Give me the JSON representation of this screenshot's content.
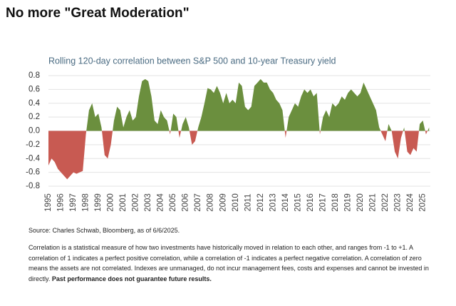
{
  "header": {
    "title": "No more \"Great Moderation\""
  },
  "chart_data": {
    "type": "area",
    "title": "Rolling 120-day correlation between S&P 500 and 10-year Treasury yield",
    "positive_color": "#6b8f3e",
    "negative_color": "#c85a52",
    "grid": true,
    "xlim": [
      1995,
      2025.6
    ],
    "xticks": [
      1995,
      1996,
      1997,
      1998,
      1999,
      2000,
      2001,
      2002,
      2003,
      2004,
      2005,
      2006,
      2007,
      2008,
      2009,
      2010,
      2011,
      2012,
      2013,
      2014,
      2015,
      2016,
      2017,
      2018,
      2019,
      2020,
      2021,
      2022,
      2023,
      2024,
      2025
    ],
    "ylim": [
      -0.8,
      0.8
    ],
    "yticks": [
      0.8,
      0.6,
      0.4,
      0.2,
      {
        "value": 0,
        "label": "0.0"
      },
      -0.2,
      -0.4,
      -0.6,
      -0.8
    ],
    "x": [
      1995,
      1995.25,
      1995.5,
      1995.75,
      1996,
      1996.25,
      1996.5,
      1996.75,
      1997,
      1997.25,
      1997.5,
      1997.75,
      1998,
      1998.25,
      1998.5,
      1998.75,
      1999,
      1999.25,
      1999.5,
      1999.75,
      2000,
      2000.25,
      2000.5,
      2000.75,
      2001,
      2001.25,
      2001.5,
      2001.75,
      2002,
      2002.25,
      2002.5,
      2002.75,
      2003,
      2003.25,
      2003.5,
      2003.75,
      2004,
      2004.25,
      2004.5,
      2004.75,
      2005,
      2005.25,
      2005.5,
      2005.75,
      2006,
      2006.25,
      2006.5,
      2006.75,
      2007,
      2007.25,
      2007.5,
      2007.75,
      2008,
      2008.25,
      2008.5,
      2008.75,
      2009,
      2009.25,
      2009.5,
      2009.75,
      2010,
      2010.25,
      2010.5,
      2010.75,
      2011,
      2011.25,
      2011.5,
      2011.75,
      2012,
      2012.25,
      2012.5,
      2012.75,
      2013,
      2013.25,
      2013.5,
      2013.75,
      2014,
      2014.25,
      2014.5,
      2014.75,
      2015,
      2015.25,
      2015.5,
      2015.75,
      2016,
      2016.25,
      2016.5,
      2016.75,
      2017,
      2017.25,
      2017.5,
      2017.75,
      2018,
      2018.25,
      2018.5,
      2018.75,
      2019,
      2019.25,
      2019.5,
      2019.75,
      2020,
      2020.25,
      2020.5,
      2020.75,
      2021,
      2021.25,
      2021.5,
      2021.75,
      2022,
      2022.25,
      2022.5,
      2022.75,
      2023,
      2023.25,
      2023.5,
      2023.75,
      2024,
      2024.25,
      2024.5,
      2024.75,
      2025,
      2025.25,
      2025.5
    ],
    "values": [
      -0.5,
      -0.4,
      -0.45,
      -0.55,
      -0.6,
      -0.65,
      -0.7,
      -0.65,
      -0.6,
      -0.62,
      -0.6,
      -0.58,
      -0.05,
      0.3,
      0.4,
      0.2,
      0.25,
      0.05,
      -0.35,
      -0.4,
      -0.2,
      0.15,
      0.35,
      0.3,
      0.05,
      0.2,
      0.3,
      0.15,
      0.2,
      0.5,
      0.72,
      0.75,
      0.72,
      0.5,
      0.15,
      0.1,
      0.3,
      0.2,
      0.15,
      -0.05,
      0.25,
      0.2,
      -0.1,
      0.1,
      0.2,
      0.05,
      -0.2,
      -0.15,
      0.05,
      0.2,
      0.4,
      0.62,
      0.6,
      0.55,
      0.65,
      0.55,
      0.4,
      0.55,
      0.4,
      0.45,
      0.4,
      0.7,
      0.65,
      0.35,
      0.3,
      0.35,
      0.65,
      0.7,
      0.75,
      0.7,
      0.7,
      0.6,
      0.55,
      0.45,
      0.4,
      0.3,
      -0.1,
      0.2,
      0.3,
      0.4,
      0.35,
      0.5,
      0.6,
      0.55,
      0.6,
      0.5,
      0.55,
      -0.05,
      0.2,
      0.3,
      0.2,
      0.4,
      0.35,
      0.4,
      0.5,
      0.45,
      0.55,
      0.6,
      0.55,
      0.5,
      0.55,
      0.7,
      0.6,
      0.5,
      0.4,
      0.3,
      0.05,
      -0.05,
      -0.15,
      0.1,
      0.0,
      -0.3,
      -0.4,
      -0.1,
      0.05,
      -0.3,
      -0.35,
      -0.25,
      -0.3,
      0.1,
      0.15,
      -0.05,
      0.05
    ]
  },
  "footer": {
    "source": "Source: Charles Schwab, Bloomberg, as of 6/6/2025.",
    "note": "Correlation is a statistical measure of how two investments have historically moved in relation to each other, and ranges from -1 to +1. A correlation of 1 indicates a perfect positive correlation, while a correlation of -1 indicates a perfect negative correlation. A correlation of zero means the assets are not correlated. Indexes are unmanaged, do not incur management fees, costs and expenses and cannot be invested in directly.",
    "note_bold": "Past performance does not guarantee future results."
  }
}
